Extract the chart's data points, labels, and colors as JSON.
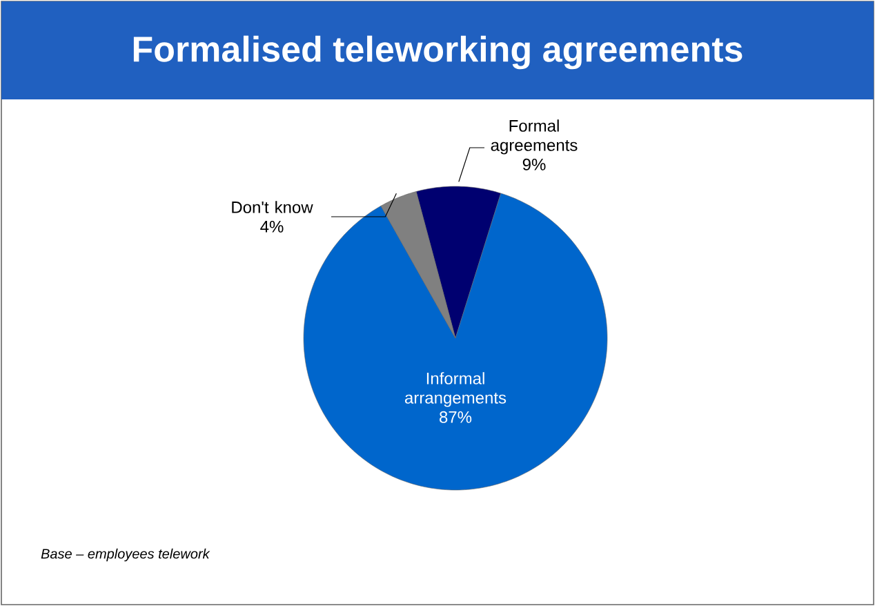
{
  "chart_data": {
    "type": "pie",
    "title": "Formalised teleworking agreements",
    "categories": [
      "Formal agreements",
      "Informal arrangements",
      "Don't know"
    ],
    "values": [
      9,
      87,
      4
    ],
    "colors": [
      "#000070",
      "#0066cc",
      "#808080"
    ],
    "value_labels": [
      "9%",
      "87%",
      "4%"
    ],
    "annotations": [
      "*Base – employees telework*"
    ]
  }
}
